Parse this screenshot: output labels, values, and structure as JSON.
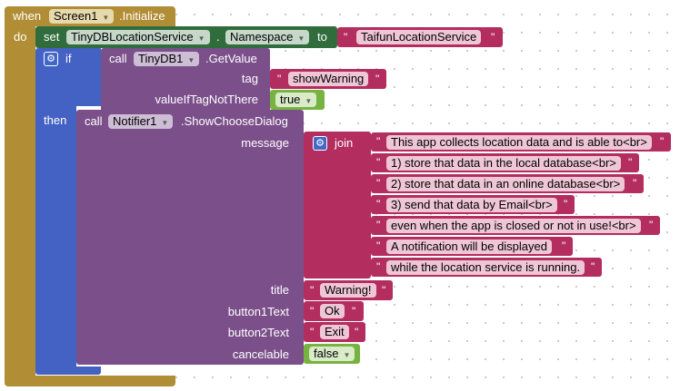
{
  "event": {
    "when": "when",
    "component": "Screen1",
    "event_name": ".Initialize",
    "do": "do"
  },
  "set_block": {
    "set": "set",
    "component": "TinyDBLocationService",
    "dot": ".",
    "property": "Namespace",
    "to": "to",
    "value": "TaifunLocationService"
  },
  "if_block": {
    "if": "if",
    "then": "then"
  },
  "getvalue": {
    "call": "call",
    "component": "TinyDB1",
    "method": ".GetValue",
    "tag_label": "tag",
    "tag_value": "showWarning",
    "default_label": "valueIfTagNotThere",
    "default_value": "true"
  },
  "dialog": {
    "call": "call",
    "component": "Notifier1",
    "method": ".ShowChooseDialog",
    "message_label": "message",
    "join": "join",
    "lines": [
      "This app collects location data and is able to<br>",
      "1) store that data in the local database<br>",
      "2) store that data in an online database<br>",
      "3) send that data by Email<br>",
      "even when the app is closed or not in use!<br>",
      "A notification will be displayed",
      "while the location service is running."
    ],
    "title_label": "title",
    "title_value": "Warning!",
    "button1_label": "button1Text",
    "button1_value": "Ok",
    "button2_label": "button2Text",
    "button2_value": "Exit",
    "cancelable_label": "cancelable",
    "cancelable_value": "false"
  },
  "colors": {
    "event": "#b18e35",
    "component": "#316c3c",
    "control": "#4462c4",
    "method": "#7b4f8a",
    "text": "#b32d5e",
    "logic": "#77b340"
  }
}
